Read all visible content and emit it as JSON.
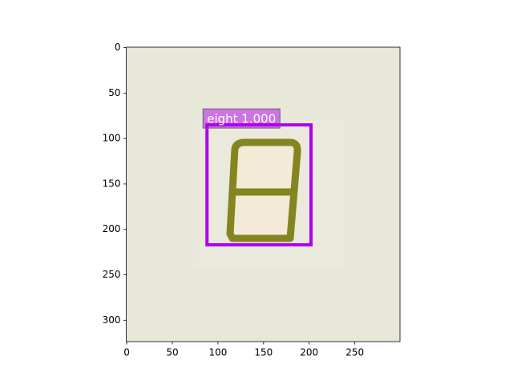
{
  "chart_data": {
    "type": "image",
    "xlim": [
      -0.5,
      299.5
    ],
    "ylim": [
      323.5,
      -0.5
    ],
    "xticks": [
      0,
      50,
      100,
      150,
      200,
      250
    ],
    "yticks": [
      0,
      50,
      100,
      150,
      200,
      250,
      300
    ],
    "boxes": [
      {
        "label": "eight 1.000",
        "x": [
          88,
          202
        ],
        "y": [
          85,
          217
        ],
        "color": "#b000f0"
      }
    ]
  }
}
